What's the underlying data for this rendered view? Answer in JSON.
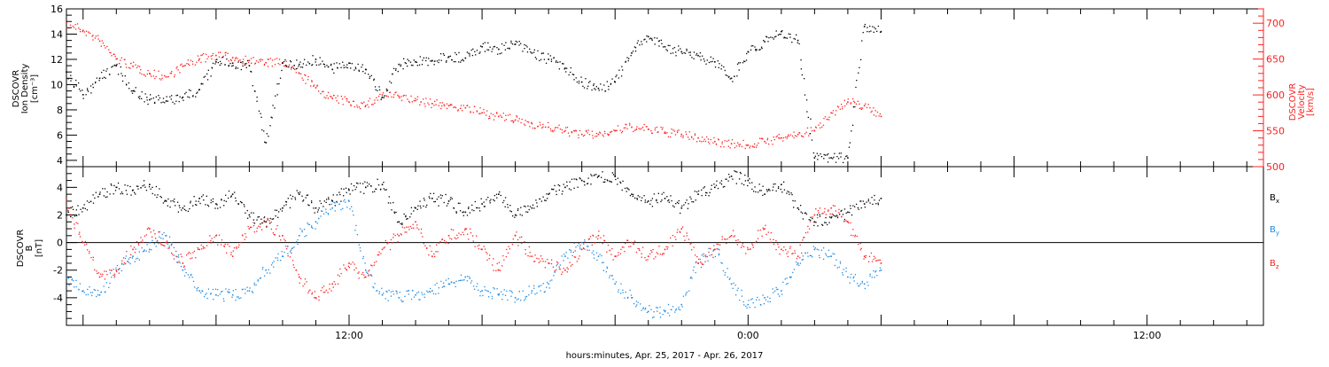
{
  "xlabel": "hours:minutes, Apr. 25, 2017 - Apr. 26, 2017",
  "x_ticks": [
    "12:00",
    "0:00",
    "12:00"
  ],
  "colors": {
    "black": "#000000",
    "red": "#ff2020",
    "blue": "#1e8ce6"
  },
  "chart_data": [
    {
      "type": "scatter",
      "panel": "plasma",
      "ylabel": [
        "DSCOVR",
        "Ion Density",
        "[cm⁻³]"
      ],
      "ylabel_right": [
        "DSCOVR",
        "Velocity",
        "[km/s]"
      ],
      "x_unit": "hours since Apr. 25, 2017 00:00",
      "xlim": [
        3.5,
        39.5
      ],
      "ylim": [
        3.5,
        16
      ],
      "yticks": [
        4,
        6,
        8,
        10,
        12,
        14,
        16
      ],
      "ylim_right": [
        500,
        720
      ],
      "yticks_right": [
        500,
        550,
        600,
        650,
        700
      ],
      "series": [
        {
          "color": "#000000",
          "axis": "left",
          "x": [
            3.5,
            4,
            4.5,
            5,
            5.5,
            6,
            6.5,
            7,
            7.5,
            8,
            8.5,
            9,
            9.5,
            10,
            10.5,
            11,
            11.5,
            12,
            12.5,
            13,
            13.5,
            14,
            14.5,
            15,
            15.5,
            16,
            16.5,
            17,
            17.5,
            18,
            18.5,
            19,
            19.5,
            20,
            20.5,
            21,
            21.5,
            22,
            22.5,
            23,
            23.5,
            24,
            24.5,
            25,
            25.5,
            26,
            26.5,
            27,
            27.5,
            28
          ],
          "y": [
            11,
            9.2,
            10.5,
            11.5,
            9.5,
            8.8,
            8.7,
            9,
            9.6,
            11.8,
            11.7,
            11.5,
            5.4,
            11.7,
            11.6,
            12,
            11.2,
            11.7,
            11.2,
            9,
            11.6,
            11.8,
            11.9,
            12.2,
            12.1,
            13,
            12.8,
            13.2,
            12.5,
            12,
            11.3,
            10.2,
            9.7,
            10.2,
            12.5,
            13.8,
            13,
            12.6,
            12.3,
            11.8,
            10.5,
            12.6,
            13.4,
            14.2,
            13.5,
            4.2,
            4.2,
            4.2,
            14.6,
            14.2
          ]
        },
        {
          "color": "#ff2020",
          "axis": "right",
          "x": [
            3.5,
            4,
            4.5,
            5,
            5.5,
            6,
            6.5,
            7,
            7.5,
            8,
            8.5,
            9,
            9.5,
            10,
            10.5,
            11,
            11.5,
            12,
            12.5,
            13,
            13.5,
            14,
            14.5,
            15,
            15.5,
            16,
            16.5,
            17,
            17.5,
            18,
            18.5,
            19,
            19.5,
            20,
            20.5,
            21,
            21.5,
            22,
            22.5,
            23,
            23.5,
            24,
            24.5,
            25,
            25.5,
            26,
            26.5,
            27,
            27.5,
            28
          ],
          "y": [
            700,
            690,
            675,
            650,
            640,
            630,
            625,
            640,
            650,
            655,
            652,
            648,
            645,
            645,
            630,
            610,
            595,
            590,
            585,
            600,
            598,
            592,
            588,
            585,
            582,
            575,
            570,
            565,
            560,
            555,
            550,
            545,
            545,
            550,
            555,
            552,
            548,
            545,
            540,
            535,
            532,
            530,
            535,
            540,
            545,
            550,
            575,
            590,
            585,
            570
          ]
        }
      ]
    },
    {
      "type": "scatter",
      "panel": "magnetic",
      "ylabel": [
        "DSCOVR",
        "B",
        "[nT]"
      ],
      "x_unit": "hours since Apr. 25, 2017 00:00",
      "xlim": [
        3.5,
        39.5
      ],
      "ylim": [
        -6,
        5.5
      ],
      "yticks": [
        -4,
        -2,
        0,
        2,
        4
      ],
      "zero_line": 0,
      "series": [
        {
          "name": "B",
          "subscript": "x",
          "color": "#000000",
          "x": [
            3.5,
            4,
            4.5,
            5,
            5.5,
            6,
            6.5,
            7,
            7.5,
            8,
            8.5,
            9,
            9.5,
            10,
            10.5,
            11,
            11.5,
            12,
            12.5,
            13,
            13.5,
            14,
            14.5,
            15,
            15.5,
            16,
            16.5,
            17,
            17.5,
            18,
            18.5,
            19,
            19.5,
            20,
            20.5,
            21,
            21.5,
            22,
            22.5,
            23,
            23.5,
            24,
            24.5,
            25,
            25.5,
            26,
            26.5,
            27,
            27.5,
            28
          ],
          "y": [
            2,
            2.5,
            3.5,
            4,
            3.8,
            4.2,
            3,
            2.5,
            3.2,
            2.8,
            3.5,
            2,
            1.5,
            2.5,
            3.5,
            2.5,
            3,
            3.8,
            4,
            4.2,
            1.5,
            2.5,
            3.2,
            3,
            2.2,
            2.8,
            3.5,
            2,
            2.5,
            3.5,
            4,
            4.5,
            4.8,
            4.8,
            3.5,
            3,
            3.2,
            2.5,
            3.5,
            4,
            4.8,
            4.5,
            3.5,
            4.2,
            2.5,
            1.5,
            1.8,
            2.2,
            2.8,
            3.2
          ]
        },
        {
          "name": "B",
          "subscript": "y",
          "color": "#1e8ce6",
          "x": [
            3.5,
            4,
            4.5,
            5,
            5.5,
            6,
            6.5,
            7,
            7.5,
            8,
            8.5,
            9,
            9.5,
            10,
            10.5,
            11,
            11.5,
            12,
            12.5,
            13,
            13.5,
            14,
            14.5,
            15,
            15.5,
            16,
            16.5,
            17,
            17.5,
            18,
            18.5,
            19,
            19.5,
            20,
            20.5,
            21,
            21.5,
            22,
            22.5,
            23,
            23.5,
            24,
            24.5,
            25,
            25.5,
            26,
            26.5,
            27,
            27.5,
            28
          ],
          "y": [
            -2.5,
            -3.5,
            -3.8,
            -2,
            -1,
            -0.5,
            0.5,
            -2,
            -3.5,
            -3.8,
            -3.8,
            -3.5,
            -2,
            -1,
            0.5,
            1.5,
            2.5,
            3,
            -2,
            -3.8,
            -4,
            -3.8,
            -3.5,
            -3,
            -2.5,
            -3.5,
            -3.8,
            -4,
            -3.5,
            -3,
            -1,
            0,
            -1,
            -3,
            -4,
            -5,
            -5,
            -4.5,
            -1.5,
            -0.5,
            -3,
            -4.5,
            -4,
            -3.5,
            -1.5,
            -0.5,
            -1,
            -2.5,
            -3,
            -2
          ]
        },
        {
          "name": "B",
          "subscript": "z",
          "color": "#ff2020",
          "x": [
            3.5,
            4,
            4.5,
            5,
            5.5,
            6,
            6.5,
            7,
            7.5,
            8,
            8.5,
            9,
            9.5,
            10,
            10.5,
            11,
            11.5,
            12,
            12.5,
            13,
            13.5,
            14,
            14.5,
            15,
            15.5,
            16,
            16.5,
            17,
            17.5,
            18,
            18.5,
            19,
            19.5,
            20,
            20.5,
            21,
            21.5,
            22,
            22.5,
            23,
            23.5,
            24,
            24.5,
            25,
            25.5,
            26,
            26.5,
            27,
            27.5,
            28
          ],
          "y": [
            3,
            0,
            -2.5,
            -2,
            -0.5,
            1,
            0,
            -1.5,
            -0.5,
            0.5,
            -1,
            1,
            1.5,
            0.5,
            -2.5,
            -4,
            -3,
            -1.5,
            -2.5,
            -0.5,
            0.5,
            1.5,
            -1,
            0.5,
            1,
            -0.5,
            -2,
            0.5,
            -1,
            -1.5,
            -2,
            -0.5,
            0.5,
            -1,
            0,
            -1,
            -0.5,
            1,
            -1.5,
            -0.5,
            0.5,
            -0.5,
            1,
            -0.5,
            -1,
            2,
            2.5,
            1.5,
            -1,
            -1.5
          ]
        }
      ]
    }
  ]
}
